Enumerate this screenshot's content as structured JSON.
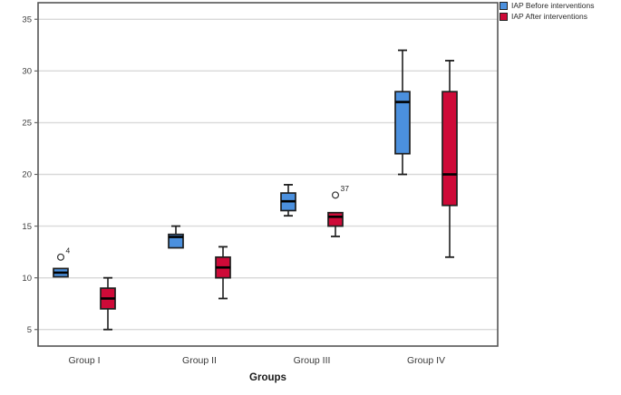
{
  "chart_data": {
    "type": "boxplot",
    "title": "",
    "xlabel": "Groups",
    "ylabel": "",
    "categories": [
      "Group I",
      "Group II",
      "Group III",
      "Group IV"
    ],
    "ylim": [
      3.4,
      36.6
    ],
    "yticks": [
      5,
      10,
      15,
      20,
      25,
      30,
      35
    ],
    "grid": "horizontal",
    "legend_position": "top-right-outside",
    "colors": {
      "before": "#4B90DE",
      "after": "#CE0A38",
      "box_border": "#1f1f1f",
      "median": "#000000",
      "gridline": "#d9d9d9",
      "frame": "#555555"
    },
    "series": [
      {
        "name": "IAP Before interventions",
        "color": "#4B90DE",
        "boxes": [
          {
            "category": "Group I",
            "whisker_low": null,
            "q1": 10.1,
            "median": 10.5,
            "q3": 10.9,
            "whisker_high": null,
            "outliers": [
              {
                "value": 12,
                "label": "4"
              }
            ]
          },
          {
            "category": "Group II",
            "whisker_low": null,
            "q1": 12.9,
            "median": 13.95,
            "q3": 14.2,
            "whisker_high": 15,
            "outliers": []
          },
          {
            "category": "Group III",
            "whisker_low": 16,
            "q1": 16.5,
            "median": 17.4,
            "q3": 18.2,
            "whisker_high": 19,
            "outliers": []
          },
          {
            "category": "Group IV",
            "whisker_low": 20,
            "q1": 22,
            "median": 27,
            "q3": 28,
            "whisker_high": 32,
            "outliers": []
          }
        ]
      },
      {
        "name": "IAP After interventions",
        "color": "#CE0A38",
        "boxes": [
          {
            "category": "Group I",
            "whisker_low": 5,
            "q1": 7,
            "median": 8,
            "q3": 9,
            "whisker_high": 10,
            "outliers": []
          },
          {
            "category": "Group II",
            "whisker_low": 8,
            "q1": 10,
            "median": 11,
            "q3": 12,
            "whisker_high": 13,
            "outliers": []
          },
          {
            "category": "Group III",
            "whisker_low": 14,
            "q1": 15,
            "median": 15.9,
            "q3": 16.3,
            "whisker_high": null,
            "outliers": [
              {
                "value": 18,
                "label": "37"
              }
            ]
          },
          {
            "category": "Group IV",
            "whisker_low": 12,
            "q1": 17,
            "median": 20,
            "q3": 28,
            "whisker_high": 31,
            "outliers": []
          }
        ]
      }
    ]
  }
}
